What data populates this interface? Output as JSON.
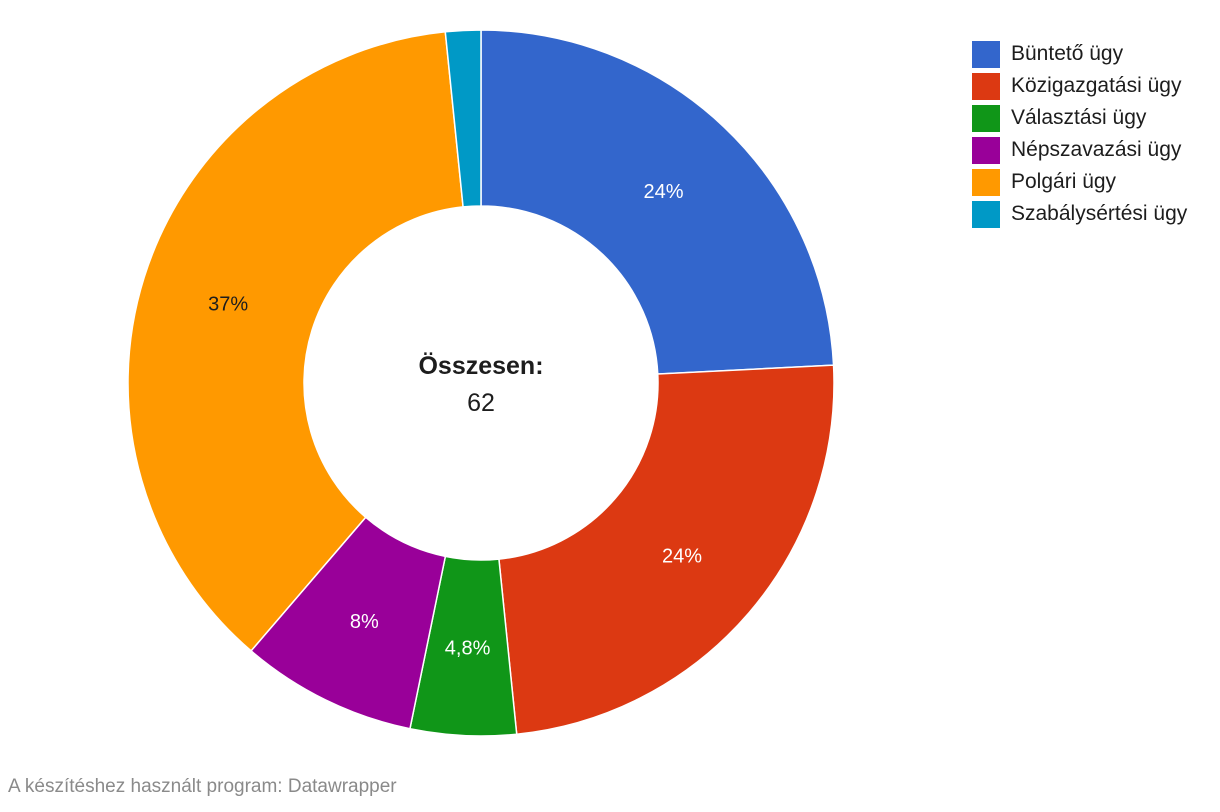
{
  "chart_data": {
    "type": "pie",
    "donut": true,
    "categories": [
      "Büntető ügy",
      "Közigazgatási ügy",
      "Választási ügy",
      "Népszavazási ügy",
      "Polgári ügy",
      "Szabálysértési ügy"
    ],
    "values": [
      15,
      15,
      3,
      5,
      23,
      1
    ],
    "colors": [
      "#3366cc",
      "#dc3912",
      "#109618",
      "#990099",
      "#ff9900",
      "#0099c6"
    ],
    "value_labels": [
      "24%",
      "24%",
      "4,8%",
      "8%",
      "37%",
      ""
    ],
    "label_colors": [
      "#ffffff",
      "#ffffff",
      "#ffffff",
      "#ffffff",
      "#1d1d1d",
      "#ffffff"
    ],
    "legend_position": "top-right",
    "center": {
      "title": "Összesen:",
      "value": "62"
    }
  },
  "footer": {
    "credit": "A készítéshez használt program: Datawrapper"
  }
}
